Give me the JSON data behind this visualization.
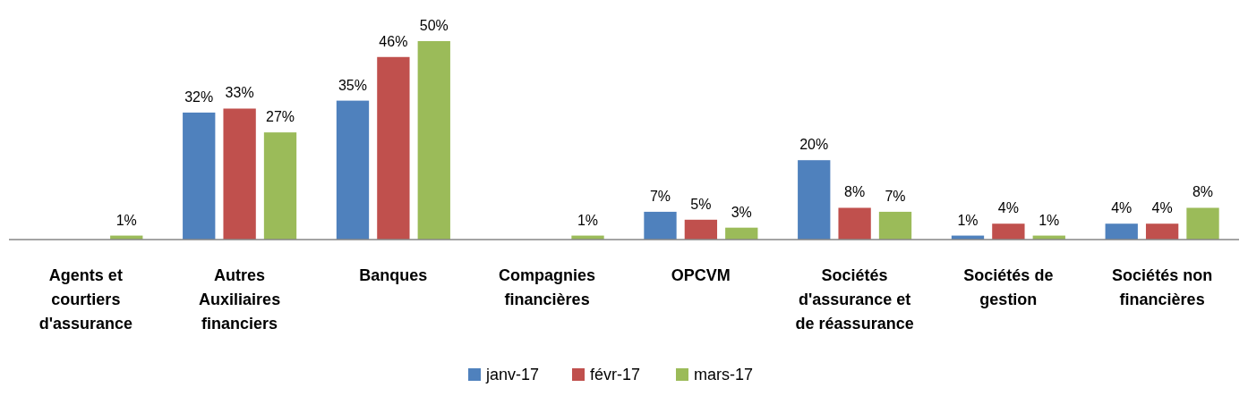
{
  "chart_data": {
    "type": "bar",
    "categories": [
      "Agents et courtiers d'assurance",
      "Autres Auxiliaires financiers",
      "Banques",
      "Compagnies financières",
      "OPCVM",
      "Sociétés d'assurance et de réassurance",
      "Sociétés de gestion",
      "Sociétés non financières"
    ],
    "series": [
      {
        "name": "janv-17",
        "color": "#4f81bd",
        "values": [
          null,
          32,
          35,
          null,
          7,
          20,
          1,
          4
        ],
        "value_labels": [
          null,
          "32%",
          "35%",
          null,
          "7%",
          "20%",
          "1%",
          "4%"
        ]
      },
      {
        "name": "févr-17",
        "color": "#c0504d",
        "values": [
          null,
          33,
          46,
          null,
          5,
          8,
          4,
          4
        ],
        "value_labels": [
          null,
          "33%",
          "46%",
          null,
          "5%",
          "8%",
          "4%",
          "4%"
        ]
      },
      {
        "name": "mars-17",
        "color": "#9bbb59",
        "values": [
          1,
          27,
          50,
          1,
          3,
          7,
          1,
          8
        ],
        "value_labels": [
          "1%",
          "27%",
          "50%",
          "1%",
          "3%",
          "7%",
          "1%",
          "8%"
        ]
      }
    ],
    "legend": "bottom"
  }
}
